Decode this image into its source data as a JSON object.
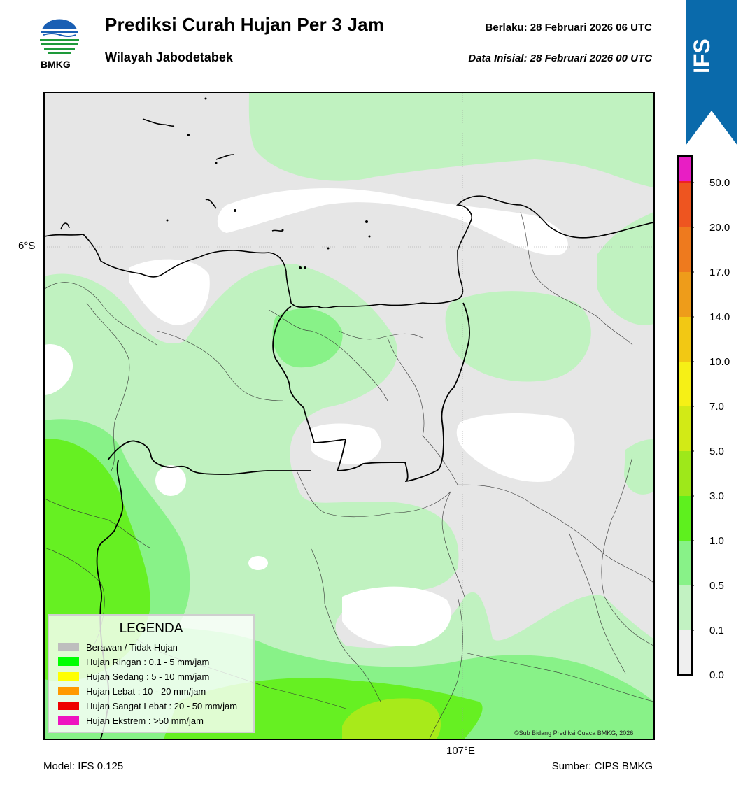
{
  "header": {
    "title": "Prediksi Curah Hujan Per 3 Jam",
    "subtitle": "Wilayah Jabodetabek",
    "valid_time": "Berlaku:  28 Februari 2026 06 UTC",
    "initial_time": "Data Inisial:  28 Februari 2026 00 UTC",
    "logo_text": "BMKG",
    "badge_text": "IFS"
  },
  "map": {
    "lat_label": "6°S",
    "lon_label": "107°E",
    "credit": "©Sub Bidang Prediksi Cuaca BMKG, 2026",
    "colors": {
      "no_rain": "#e6e6e6",
      "level_0_1": "#c0f2c0",
      "level_0_5": "#88f288",
      "level_1": "#66f022",
      "level_3": "#a8ea1a",
      "clear": "#ffffff"
    }
  },
  "legend": {
    "title": "LEGENDA",
    "items": [
      {
        "label": "Berawan / Tidak Hujan",
        "color": "#bebebe"
      },
      {
        "label": "Hujan Ringan : 0.1 - 5 mm/jam",
        "color": "#00ff00"
      },
      {
        "label": "Hujan Sedang : 5 - 10 mm/jam",
        "color": "#ffff00"
      },
      {
        "label": "Hujan Lebat : 10 - 20 mm/jam",
        "color": "#ff9900"
      },
      {
        "label": "Hujan Sangat Lebat : 20 - 50 mm/jam",
        "color": "#ee0000"
      },
      {
        "label": "Hujan Ekstrem : >50 mm/jam",
        "color": "#ee14c0"
      }
    ]
  },
  "colorbar": {
    "ticks": [
      "50.0",
      "20.0",
      "17.0",
      "14.0",
      "10.0",
      "7.0",
      "5.0",
      "3.0",
      "1.0",
      "0.5",
      "0.1",
      "0.0"
    ],
    "colors_bottom_to_top": [
      "#efefef",
      "#c2f2c2",
      "#88f288",
      "#5ef01e",
      "#9ee81a",
      "#d2ea16",
      "#f6f016",
      "#f2c814",
      "#ee9c1a",
      "#ee7a1e",
      "#ee5520",
      "#ee2222",
      "#e81ec4"
    ]
  },
  "footer": {
    "model": "Model: IFS 0.125",
    "source": "Sumber: CIPS BMKG"
  }
}
